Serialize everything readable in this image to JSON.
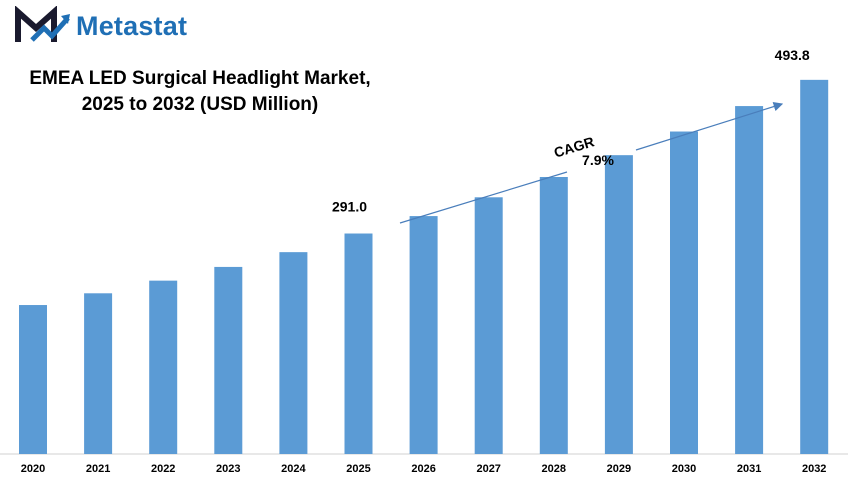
{
  "brand": {
    "name": "Metastat",
    "logo_icon": "metastat-m-arrow-icon",
    "color": "#1f6fb5",
    "accent": "#1a1a2e"
  },
  "chart_data": {
    "type": "bar",
    "title": "EMEA LED Surgical Headlight Market, 2025 to 2032 (USD Million)",
    "title_lines": [
      "EMEA LED Surgical Headlight Market,",
      "2025 to 2032 (USD Million)"
    ],
    "categories": [
      "2020",
      "2021",
      "2022",
      "2023",
      "2024",
      "2025",
      "2026",
      "2027",
      "2028",
      "2029",
      "2030",
      "2031",
      "2032"
    ],
    "values": [
      196.6,
      212.1,
      228.8,
      246.9,
      266.4,
      291.0,
      314.0,
      338.8,
      365.6,
      394.4,
      425.6,
      459.2,
      493.8
    ],
    "data_labels": [
      {
        "category": "2025",
        "text": "291.0"
      },
      {
        "category": "2032",
        "text": "493.8"
      }
    ],
    "annotation": {
      "label": "CAGR",
      "value": "7.9%"
    },
    "bar_color": "#5b9bd5",
    "arrow_color": "#4a7ebb",
    "ylim": [
      0,
      520
    ],
    "grid": false,
    "legend": "none"
  }
}
